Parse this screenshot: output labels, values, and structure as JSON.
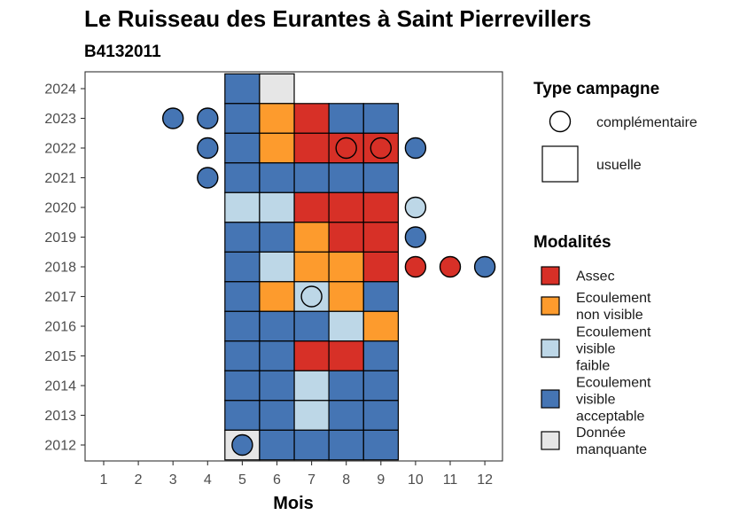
{
  "chart_data": {
    "type": "heatmap",
    "title": "Le Ruisseau des Eurantes à Saint Pierrevillers",
    "subtitle": "B4132011",
    "xlabel": "Mois",
    "ylabel": "",
    "x_ticks": [
      "1",
      "2",
      "3",
      "4",
      "5",
      "6",
      "7",
      "8",
      "9",
      "10",
      "11",
      "12"
    ],
    "y_ticks": [
      "2012",
      "2013",
      "2014",
      "2015",
      "2016",
      "2017",
      "2018",
      "2019",
      "2020",
      "2021",
      "2022",
      "2023",
      "2024"
    ],
    "xlim": [
      0.5,
      12.5
    ],
    "ylim": [
      2011.5,
      2024.5
    ],
    "grid": false,
    "legend_placement": "right",
    "categories": {
      "A": {
        "label": "Assec",
        "color": "#d73027"
      },
      "N": {
        "label": "Ecoulement non visible",
        "color": "#fd9b2d"
      },
      "F": {
        "label": "Ecoulement visible faible",
        "color": "#bdd7e7"
      },
      "V": {
        "label": "Ecoulement visible acceptable",
        "color": "#4575b4"
      },
      "M": {
        "label": "Donnée manquante",
        "color": "#e6e6e6"
      }
    },
    "campaign_types": {
      "title": "Type campagne",
      "items": [
        {
          "key": "complementaire",
          "label": "complémentaire",
          "shape": "circle"
        },
        {
          "key": "usuelle",
          "label": "usuelle",
          "shape": "square"
        }
      ]
    },
    "modalites_title": "Modalités",
    "modalites_legend": [
      {
        "key": "A",
        "lines": [
          "Assec"
        ]
      },
      {
        "key": "N",
        "lines": [
          "Ecoulement",
          "non visible"
        ]
      },
      {
        "key": "F",
        "lines": [
          "Ecoulement",
          "visible",
          "faible"
        ]
      },
      {
        "key": "V",
        "lines": [
          "Ecoulement",
          "visible",
          "acceptable"
        ]
      },
      {
        "key": "M",
        "lines": [
          "Donnée",
          "manquante"
        ]
      }
    ],
    "usuelle": [
      {
        "year": 2024,
        "months": {
          "5": "V",
          "6": "M"
        }
      },
      {
        "year": 2023,
        "months": {
          "5": "V",
          "6": "N",
          "7": "A",
          "8": "V",
          "9": "V"
        }
      },
      {
        "year": 2022,
        "months": {
          "5": "V",
          "6": "N",
          "7": "A",
          "8": "A",
          "9": "A"
        }
      },
      {
        "year": 2021,
        "months": {
          "5": "V",
          "6": "V",
          "7": "V",
          "8": "V",
          "9": "V"
        }
      },
      {
        "year": 2020,
        "months": {
          "5": "F",
          "6": "F",
          "7": "A",
          "8": "A",
          "9": "A"
        }
      },
      {
        "year": 2019,
        "months": {
          "5": "V",
          "6": "V",
          "7": "N",
          "8": "A",
          "9": "A"
        }
      },
      {
        "year": 2018,
        "months": {
          "5": "V",
          "6": "F",
          "7": "N",
          "8": "N",
          "9": "A"
        }
      },
      {
        "year": 2017,
        "months": {
          "5": "V",
          "6": "N",
          "7": "F",
          "8": "N",
          "9": "V"
        }
      },
      {
        "year": 2016,
        "months": {
          "5": "V",
          "6": "V",
          "7": "V",
          "8": "F",
          "9": "N"
        }
      },
      {
        "year": 2015,
        "months": {
          "5": "V",
          "6": "V",
          "7": "A",
          "8": "A",
          "9": "V"
        }
      },
      {
        "year": 2014,
        "months": {
          "5": "V",
          "6": "V",
          "7": "F",
          "8": "V",
          "9": "V"
        }
      },
      {
        "year": 2013,
        "months": {
          "5": "V",
          "6": "V",
          "7": "F",
          "8": "V",
          "9": "V"
        }
      },
      {
        "year": 2012,
        "months": {
          "5": "M",
          "6": "V",
          "7": "V",
          "8": "V",
          "9": "V"
        }
      }
    ],
    "complementaire": [
      {
        "year": 2023,
        "month": 3,
        "value": "V"
      },
      {
        "year": 2023,
        "month": 4,
        "value": "V"
      },
      {
        "year": 2022,
        "month": 4,
        "value": "V"
      },
      {
        "year": 2022,
        "month": 8,
        "value": "A"
      },
      {
        "year": 2022,
        "month": 9,
        "value": "A"
      },
      {
        "year": 2022,
        "month": 10,
        "value": "V"
      },
      {
        "year": 2021,
        "month": 4,
        "value": "V"
      },
      {
        "year": 2020,
        "month": 10,
        "value": "F"
      },
      {
        "year": 2019,
        "month": 10,
        "value": "V"
      },
      {
        "year": 2018,
        "month": 10,
        "value": "A"
      },
      {
        "year": 2018,
        "month": 11,
        "value": "A"
      },
      {
        "year": 2018,
        "month": 12,
        "value": "V"
      },
      {
        "year": 2017,
        "month": 7,
        "value": "F"
      },
      {
        "year": 2012,
        "month": 5,
        "value": "V"
      }
    ]
  }
}
